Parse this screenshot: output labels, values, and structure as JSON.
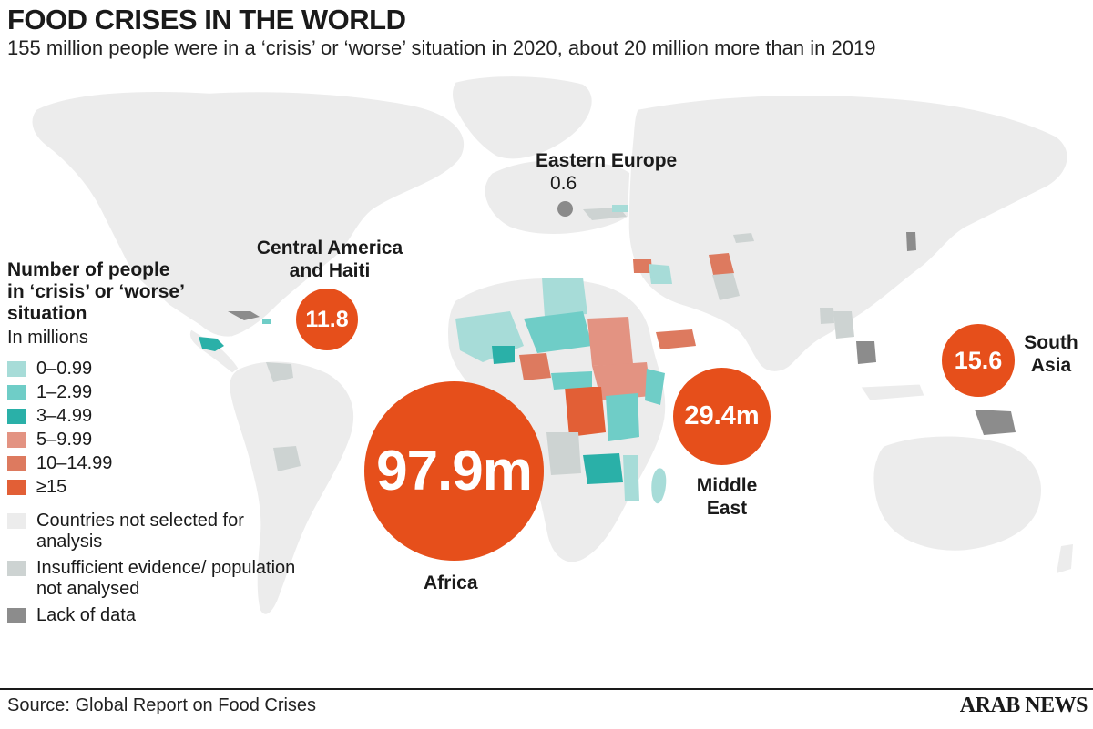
{
  "title": "FOOD CRISES IN THE WORLD",
  "subtitle": "155 million people were in a ‘crisis’ or ‘worse’ situation in 2020, about 20 million more than in 2019",
  "legend": {
    "heading": "Number of people in ‘crisis’ or ‘worse’ situation",
    "unit": "In millions",
    "bins": [
      {
        "label": "0–0.99",
        "color": "#a7dcd8"
      },
      {
        "label": "1–2.99",
        "color": "#6fcdc7"
      },
      {
        "label": "3–4.99",
        "color": "#2ab0a8"
      },
      {
        "label": "5–9.99",
        "color": "#e39382"
      },
      {
        "label": "10–14.99",
        "color": "#dd7a5f"
      },
      {
        "label": "≥15",
        "color": "#e25f36"
      }
    ],
    "notes": [
      {
        "label": "Countries not selected for analysis",
        "color": "#ececec"
      },
      {
        "label": "Insufficient evidence/ population not analysed",
        "color": "#cdd3d2"
      },
      {
        "label": "Lack of data",
        "color": "#8c8c8c"
      }
    ]
  },
  "regions": {
    "eastern_europe": {
      "name": "Eastern Europe",
      "value": "0.6"
    },
    "central_america": {
      "name": "Central America and Haiti",
      "value": "11.8"
    },
    "africa": {
      "name": "Africa",
      "value": "97.9m"
    },
    "middle_east": {
      "name": "Middle East",
      "value": "29.4m"
    },
    "south_asia": {
      "name": "South Asia",
      "value": "15.6"
    }
  },
  "colors": {
    "land": "#ececec",
    "bubble": "#e64f1b",
    "insufficient": "#cdd3d2",
    "lack_of_data": "#8c8c8c"
  },
  "footer": {
    "source": "Source: Global Report on Food Crises",
    "brand": "ARAB NEWS"
  }
}
